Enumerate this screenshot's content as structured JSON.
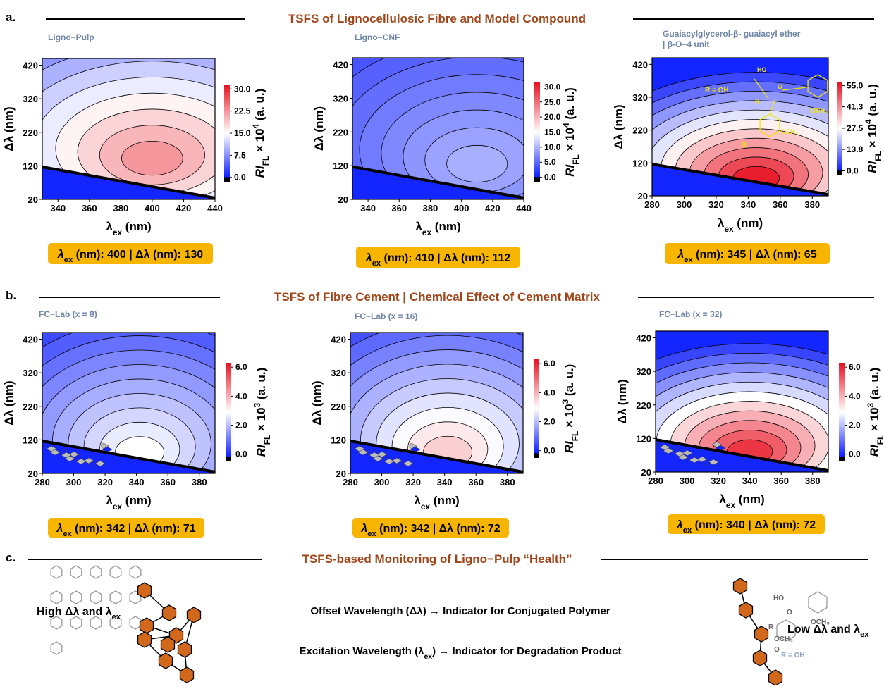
{
  "common": {
    "x_label": [
      "λ",
      "ex",
      " (nm)"
    ],
    "y_label": "Δλ (nm)",
    "cbar_label": [
      "RI",
      "FL",
      " × 10",
      " (a. u.)"
    ],
    "peak_label": [
      "λ",
      "ex",
      " (nm): ",
      " | Δλ (nm): "
    ]
  },
  "sections": [
    {
      "letter": "a.",
      "title": "TSFS of Lignocellulosic Fibre and Model Compound",
      "panels": [
        {
          "title": [
            "Ligno−Pulp"
          ],
          "xlim": [
            330,
            440
          ],
          "xticks": [
            340,
            360,
            380,
            400,
            420,
            440
          ],
          "ylim": [
            20,
            440
          ],
          "yticks": [
            20,
            120,
            220,
            320,
            420
          ],
          "cbar_lim": [
            -1.5,
            31.5
          ],
          "cbar_ticks": [
            {
              "value": 0,
              "label": "0.0"
            },
            7.5,
            {
              "value": 15,
              "label": "15.0"
            },
            22.5,
            {
              "value": 30,
              "label": "30.0"
            }
          ],
          "cbar_exp": 4,
          "peak": {
            "ex": 400,
            "offset": 130
          }
        },
        {
          "title": [
            "Ligno−CNF"
          ],
          "xlim": [
            330,
            440
          ],
          "xticks": [
            340,
            360,
            380,
            400,
            420,
            440
          ],
          "ylim": [
            20,
            440
          ],
          "yticks": [
            20,
            120,
            220,
            320,
            420
          ],
          "cbar_lim": [
            -1.5,
            31.5
          ],
          "cbar_ticks": [
            {
              "value": 0,
              "label": "0.0"
            },
            {
              "value": 5,
              "label": "5.0"
            },
            {
              "value": 10,
              "label": "10.0"
            },
            {
              "value": 15,
              "label": "15.0"
            },
            {
              "value": 20,
              "label": "20.0"
            },
            {
              "value": 25,
              "label": "25.0"
            },
            {
              "value": 30,
              "label": "30.0"
            }
          ],
          "cbar_exp": 4,
          "peak": {
            "ex": 410,
            "offset": 112
          }
        },
        {
          "title": [
            "Guaiacylglycerol-β- guaiacyl ether",
            "| β-O−4 unit"
          ],
          "xlim": [
            280,
            390
          ],
          "xticks": [
            280,
            300,
            320,
            340,
            360,
            380
          ],
          "ylim": [
            20,
            440
          ],
          "yticks": [
            20,
            120,
            220,
            320,
            420
          ],
          "cbar_lim": [
            -2.5,
            57
          ],
          "cbar_ticks": [
            {
              "value": 0,
              "label": "0.0"
            },
            13.8,
            27.5,
            41.3,
            {
              "value": 55,
              "label": "55.0"
            }
          ],
          "cbar_exp": 4,
          "peak": {
            "ex": 345,
            "offset": 65
          },
          "inset": [
            "R = OH",
            "HO",
            "R",
            "O",
            "OCH₃",
            "OCH₃",
            "O"
          ]
        }
      ]
    },
    {
      "letter": "b.",
      "title": "TSFS of Fibre Cement | Chemical Effect of Cement Matrix",
      "panels": [
        {
          "title": [
            "FC−Lab (x = 8)"
          ],
          "xlim": [
            280,
            390
          ],
          "xticks": [
            280,
            300,
            320,
            340,
            360,
            380
          ],
          "ylim": [
            20,
            440
          ],
          "yticks": [
            20,
            120,
            220,
            320,
            420
          ],
          "cbar_lim": [
            -0.5,
            6.3
          ],
          "cbar_ticks": [
            {
              "value": 0,
              "label": "0.0"
            },
            {
              "value": 2,
              "label": "2.0"
            },
            {
              "value": 4,
              "label": "4.0"
            },
            {
              "value": 6,
              "label": "6.0"
            }
          ],
          "cbar_exp": 3,
          "peak": {
            "ex": 342,
            "offset": 71
          }
        },
        {
          "title": [
            "FC−Lab (x = 16)"
          ],
          "xlim": [
            280,
            390
          ],
          "xticks": [
            280,
            300,
            320,
            340,
            360,
            380
          ],
          "ylim": [
            20,
            440
          ],
          "yticks": [
            20,
            120,
            220,
            320,
            420
          ],
          "cbar_lim": [
            -0.5,
            6.3
          ],
          "cbar_ticks": [
            {
              "value": 0,
              "label": "0.0"
            },
            {
              "value": 2,
              "label": "2.0"
            },
            {
              "value": 4,
              "label": "4.0"
            },
            {
              "value": 6,
              "label": "6.0"
            }
          ],
          "cbar_exp": 3,
          "peak": {
            "ex": 342,
            "offset": 72
          }
        },
        {
          "title": [
            "FC−Lab (x = 32)"
          ],
          "xlim": [
            280,
            390
          ],
          "xticks": [
            280,
            300,
            320,
            340,
            360,
            380
          ],
          "ylim": [
            20,
            440
          ],
          "yticks": [
            20,
            120,
            220,
            320,
            420
          ],
          "cbar_lim": [
            -0.5,
            6.3
          ],
          "cbar_ticks": [
            {
              "value": 0,
              "label": "0.0"
            },
            {
              "value": 2,
              "label": "2.0"
            },
            {
              "value": 4,
              "label": "4.0"
            },
            {
              "value": 6,
              "label": "6.0"
            }
          ],
          "cbar_exp": 3,
          "peak": {
            "ex": 340,
            "offset": 72
          }
        }
      ]
    }
  ],
  "section_c": {
    "letter": "c.",
    "title": "TSFS-based Monitoring of Ligno−Pulp “Health”",
    "high_label": [
      "High Δλ and λ",
      "ex"
    ],
    "low_label": [
      "Low Δλ and λ",
      "ex"
    ],
    "lines": [
      [
        "Offset Wavelength (Δλ) → Indicator for Conjugated Polymer"
      ],
      [
        "Excitation Wavelength (λ",
        "ex",
        ") → Indicator for Degradation Product"
      ]
    ],
    "molecule": [
      "HO",
      "R",
      "O",
      "OCH₃",
      "OCH₃",
      "O",
      "R = OH"
    ]
  }
}
